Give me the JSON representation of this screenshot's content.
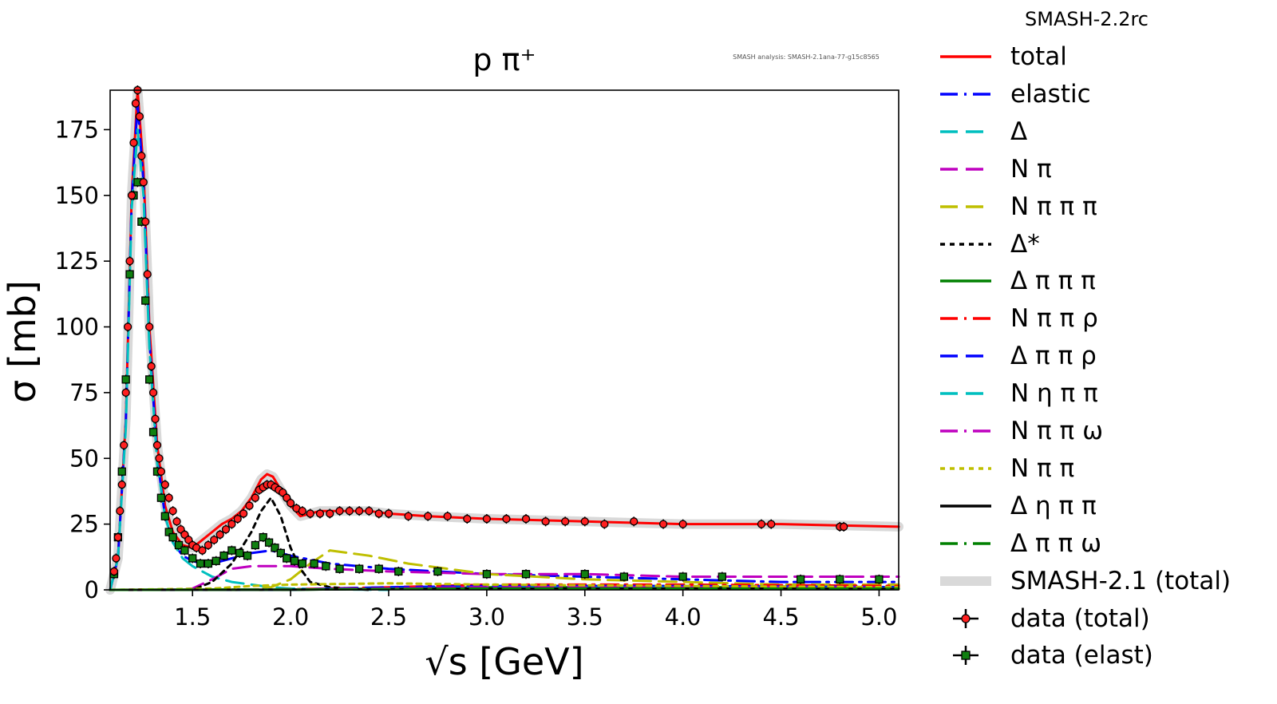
{
  "chart_data": {
    "type": "line",
    "title": "p π⁺",
    "watermark": "SMASH analysis: SMASH-2.1ana-77-g15c8565",
    "xlabel": "√s [GeV]",
    "ylabel": "σ [mb]",
    "xlim": [
      1.08,
      5.1
    ],
    "ylim": [
      0,
      190
    ],
    "xticks": [
      "1.5",
      "2.0",
      "2.5",
      "3.0",
      "3.5",
      "4.0",
      "4.5",
      "5.0"
    ],
    "xtick_values": [
      1.5,
      2.0,
      2.5,
      3.0,
      3.5,
      4.0,
      4.5,
      5.0
    ],
    "yticks": [
      "0",
      "25",
      "50",
      "75",
      "100",
      "125",
      "150",
      "175"
    ],
    "ytick_values": [
      0,
      25,
      50,
      75,
      100,
      125,
      150,
      175
    ],
    "grid": false,
    "legend_title": "SMASH-2.2rc",
    "legend_position": "outside right",
    "series": [
      {
        "name": "total",
        "color": "#ff0000",
        "style": "solid",
        "x": [
          1.08,
          1.12,
          1.16,
          1.19,
          1.22,
          1.25,
          1.28,
          1.32,
          1.36,
          1.4,
          1.45,
          1.5,
          1.55,
          1.6,
          1.65,
          1.7,
          1.75,
          1.8,
          1.85,
          1.88,
          1.91,
          1.95,
          2.0,
          2.05,
          2.1,
          2.15,
          2.2,
          2.3,
          2.4,
          2.5,
          2.7,
          3.0,
          3.5,
          4.0,
          4.5,
          5.1
        ],
        "y": [
          0,
          12,
          65,
          150,
          190,
          160,
          100,
          55,
          32,
          22,
          17,
          16,
          19,
          22,
          25,
          27,
          30,
          35,
          42,
          44,
          43,
          38,
          32,
          28,
          29,
          30,
          30,
          30,
          30,
          29,
          28,
          27,
          26,
          25,
          25,
          24
        ]
      },
      {
        "name": "elastic",
        "color": "#0000ff",
        "style": "dashdot",
        "x": [
          1.08,
          1.12,
          1.16,
          1.19,
          1.22,
          1.25,
          1.28,
          1.32,
          1.36,
          1.4,
          1.45,
          1.5,
          1.55,
          1.6,
          1.7,
          1.8,
          1.9,
          2.0,
          2.2,
          2.5,
          3.0,
          3.5,
          4.0,
          4.5,
          5.1
        ],
        "y": [
          0,
          12,
          64,
          148,
          185,
          155,
          95,
          50,
          28,
          18,
          13,
          11,
          10,
          10,
          12,
          14,
          15,
          13,
          10,
          8,
          6,
          5,
          4,
          3,
          3
        ]
      },
      {
        "name": "Δ",
        "color": "#00bfbf",
        "style": "dashed",
        "x": [
          1.08,
          1.12,
          1.16,
          1.19,
          1.22,
          1.25,
          1.28,
          1.32,
          1.36,
          1.4,
          1.45,
          1.5,
          1.6,
          1.7,
          1.8,
          1.9,
          2.0,
          2.2,
          2.5
        ],
        "y": [
          0,
          12,
          62,
          145,
          175,
          150,
          92,
          48,
          28,
          18,
          12,
          9,
          5,
          3,
          2,
          1,
          0.5,
          0.2,
          0
        ]
      },
      {
        "name": "N π",
        "color": "#bf00bf",
        "style": "dashed",
        "x": [
          1.08,
          1.4,
          1.5,
          1.6,
          1.7,
          1.8,
          1.9,
          2.0,
          2.2,
          2.5,
          3.0,
          3.5,
          4.0,
          4.5,
          5.1
        ],
        "y": [
          0,
          0,
          0.5,
          4,
          8,
          9,
          9,
          9,
          8,
          7,
          6,
          6,
          5,
          5,
          5
        ]
      },
      {
        "name": "N π π π",
        "color": "#bfbf00",
        "style": "dashed",
        "x": [
          1.08,
          1.8,
          1.9,
          2.0,
          2.1,
          2.2,
          2.4,
          2.6,
          2.8,
          3.0,
          3.5,
          4.0,
          4.5,
          5.1
        ],
        "y": [
          0,
          0,
          1,
          4,
          10,
          15,
          13,
          10,
          8,
          6,
          4,
          3,
          2,
          2
        ]
      },
      {
        "name": "Δ*",
        "color": "#000000",
        "style": "dotted",
        "x": [
          1.08,
          1.5,
          1.6,
          1.7,
          1.8,
          1.85,
          1.9,
          1.95,
          2.0,
          2.05,
          2.1,
          2.2,
          2.4
        ],
        "y": [
          0,
          0,
          3,
          10,
          22,
          30,
          35,
          28,
          16,
          8,
          3,
          1,
          0
        ]
      },
      {
        "name": "Δ π π π",
        "color": "#008000",
        "style": "solid",
        "x": [
          1.08,
          2.0,
          2.5,
          3.0,
          4.0,
          5.1
        ],
        "y": [
          0,
          0,
          0.5,
          1,
          1,
          1
        ]
      },
      {
        "name": "N π π ρ",
        "color": "#ff0000",
        "style": "dashdot",
        "x": [
          1.08,
          2.0,
          2.5,
          3.0,
          4.0,
          5.1
        ],
        "y": [
          0,
          0.2,
          1,
          2,
          2,
          1.5
        ]
      },
      {
        "name": "Δ π π ρ",
        "color": "#0000ff",
        "style": "dashed",
        "x": [
          1.08,
          2.0,
          2.5,
          3.0,
          4.0,
          5.1
        ],
        "y": [
          0,
          0.1,
          1,
          1.5,
          1.5,
          1
        ]
      },
      {
        "name": "N η π π",
        "color": "#00bfbf",
        "style": "dashed",
        "x": [
          1.08,
          2.0,
          2.5,
          3.0,
          4.0,
          5.1
        ],
        "y": [
          0,
          0.1,
          0.5,
          0.8,
          0.8,
          0.5
        ]
      },
      {
        "name": "N π π ω",
        "color": "#bf00bf",
        "style": "dashdot",
        "x": [
          1.08,
          2.0,
          2.5,
          3.0,
          4.0,
          5.1
        ],
        "y": [
          0,
          0.1,
          0.6,
          1,
          1,
          0.8
        ]
      },
      {
        "name": "N π π",
        "color": "#bfbf00",
        "style": "dotted",
        "x": [
          1.08,
          1.6,
          1.8,
          2.0,
          2.5,
          3.0,
          4.0,
          5.1
        ],
        "y": [
          0,
          0.5,
          1.5,
          2,
          2.5,
          2,
          1.5,
          1
        ]
      },
      {
        "name": "Δ η π π",
        "color": "#000000",
        "style": "solid",
        "x": [
          1.08,
          2.0,
          2.5,
          3.0,
          4.0,
          5.1
        ],
        "y": [
          0,
          0.1,
          0.3,
          0.5,
          0.5,
          0.4
        ]
      },
      {
        "name": "Δ π π ω",
        "color": "#008000",
        "style": "dashdot",
        "x": [
          1.08,
          2.0,
          2.5,
          3.0,
          4.0,
          5.1
        ],
        "y": [
          0,
          0.1,
          0.3,
          0.5,
          0.5,
          0.4
        ]
      },
      {
        "name": "SMASH-2.1 (total)",
        "color": "#d9d9d9",
        "style": "band",
        "x": [
          1.08,
          1.12,
          1.16,
          1.19,
          1.22,
          1.25,
          1.28,
          1.32,
          1.36,
          1.4,
          1.45,
          1.5,
          1.55,
          1.6,
          1.65,
          1.7,
          1.75,
          1.8,
          1.85,
          1.88,
          1.91,
          1.95,
          2.0,
          2.05,
          2.1,
          2.15,
          2.2,
          2.3,
          2.4,
          2.5,
          2.7,
          3.0,
          3.5,
          4.0,
          4.5,
          5.1
        ],
        "y": [
          0,
          12,
          65,
          150,
          190,
          160,
          100,
          55,
          32,
          22,
          17,
          16,
          19,
          22,
          25,
          27,
          30,
          35,
          42,
          44,
          43,
          38,
          32,
          28,
          29,
          30,
          30,
          30,
          30,
          29,
          28,
          27,
          26,
          25,
          25,
          24
        ]
      }
    ],
    "data_total": {
      "name": "data (total)",
      "marker_color": "#ff2020",
      "x": [
        1.1,
        1.11,
        1.12,
        1.13,
        1.14,
        1.15,
        1.16,
        1.17,
        1.18,
        1.19,
        1.2,
        1.21,
        1.22,
        1.23,
        1.24,
        1.25,
        1.26,
        1.27,
        1.28,
        1.29,
        1.3,
        1.31,
        1.32,
        1.33,
        1.34,
        1.36,
        1.38,
        1.4,
        1.42,
        1.44,
        1.46,
        1.48,
        1.5,
        1.52,
        1.55,
        1.58,
        1.61,
        1.64,
        1.67,
        1.7,
        1.73,
        1.76,
        1.79,
        1.82,
        1.84,
        1.86,
        1.88,
        1.9,
        1.92,
        1.94,
        1.96,
        1.98,
        2.0,
        2.03,
        2.06,
        2.1,
        2.15,
        2.2,
        2.25,
        2.3,
        2.35,
        2.4,
        2.45,
        2.5,
        2.6,
        2.7,
        2.8,
        2.9,
        3.0,
        3.1,
        3.2,
        3.3,
        3.4,
        3.5,
        3.6,
        3.75,
        3.9,
        4.0,
        4.4,
        4.45,
        4.8,
        4.82
      ],
      "y": [
        7,
        12,
        20,
        30,
        40,
        55,
        75,
        100,
        125,
        150,
        170,
        185,
        190,
        180,
        165,
        155,
        140,
        120,
        100,
        85,
        75,
        65,
        55,
        50,
        45,
        40,
        35,
        30,
        26,
        23,
        21,
        19,
        17,
        16,
        15,
        17,
        19,
        21,
        23,
        25,
        27,
        29,
        32,
        35,
        38,
        39,
        40,
        40,
        39,
        38,
        37,
        35,
        33,
        31,
        30,
        29,
        29,
        29,
        30,
        30,
        30,
        30,
        29,
        29,
        28,
        28,
        28,
        27,
        27,
        27,
        27,
        26,
        26,
        26,
        25,
        26,
        25,
        25,
        25,
        25,
        24,
        24
      ]
    },
    "data_elast": {
      "name": "data (elast)",
      "marker_color": "#108010",
      "x": [
        1.1,
        1.12,
        1.14,
        1.16,
        1.18,
        1.2,
        1.22,
        1.24,
        1.26,
        1.28,
        1.3,
        1.32,
        1.34,
        1.36,
        1.38,
        1.4,
        1.43,
        1.46,
        1.5,
        1.54,
        1.58,
        1.62,
        1.66,
        1.7,
        1.74,
        1.78,
        1.82,
        1.86,
        1.89,
        1.92,
        1.95,
        1.98,
        2.02,
        2.06,
        2.12,
        2.18,
        2.25,
        2.35,
        2.45,
        2.55,
        2.75,
        3.0,
        3.2,
        3.5,
        3.7,
        4.0,
        4.2,
        4.6,
        4.8,
        5.0
      ],
      "y": [
        6,
        20,
        45,
        80,
        120,
        150,
        155,
        140,
        110,
        80,
        60,
        45,
        35,
        28,
        22,
        20,
        17,
        15,
        12,
        10,
        10,
        11,
        13,
        15,
        14,
        13,
        17,
        20,
        18,
        16,
        14,
        12,
        11,
        10,
        10,
        9,
        8,
        8,
        8,
        7,
        7,
        6,
        6,
        6,
        5,
        5,
        5,
        4,
        4,
        4
      ]
    }
  }
}
